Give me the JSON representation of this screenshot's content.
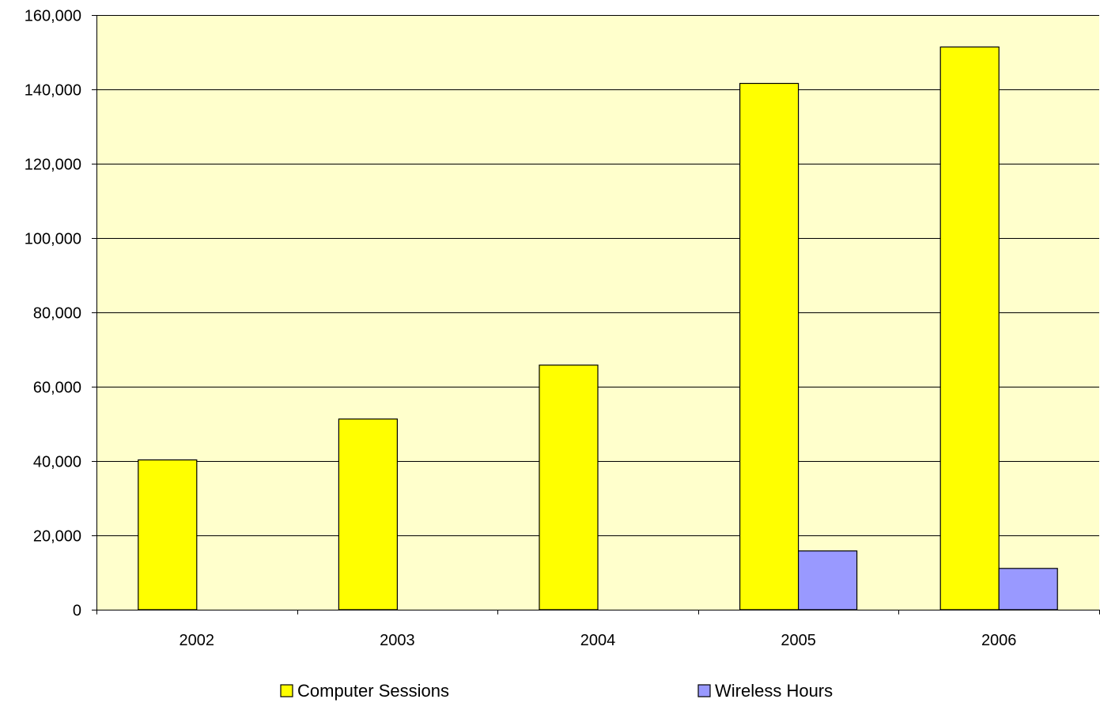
{
  "chart_data": {
    "type": "bar",
    "title": "",
    "xlabel": "",
    "ylabel": "",
    "categories": [
      "2002",
      "2003",
      "2004",
      "2005",
      "2006"
    ],
    "series": [
      {
        "name": "Computer Sessions",
        "color": "#ffff00",
        "values": [
          40300,
          51300,
          65800,
          141600,
          151400
        ]
      },
      {
        "name": "Wireless Hours",
        "color": "#9999ff",
        "values": [
          null,
          null,
          null,
          15800,
          11100
        ]
      }
    ],
    "ylim": [
      0,
      160000
    ],
    "yticks": [
      0,
      20000,
      40000,
      60000,
      80000,
      100000,
      120000,
      140000,
      160000
    ],
    "ytick_labels": [
      "0",
      "20,000",
      "40,000",
      "60,000",
      "80,000",
      "100,000",
      "120,000",
      "140,000",
      "160,000"
    ],
    "plot_background": "#ffffcc",
    "grid": true,
    "legend_position": "bottom"
  }
}
